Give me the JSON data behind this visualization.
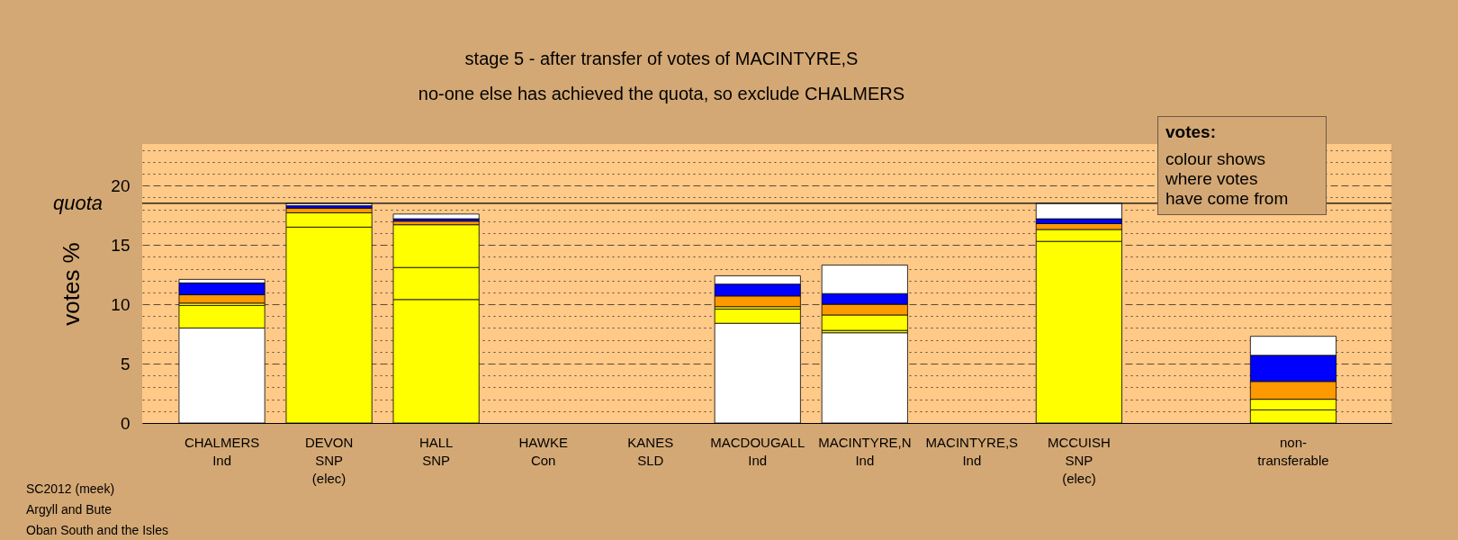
{
  "chart_data": {
    "type": "bar",
    "stacked": true,
    "title": "stage 5 - after transfer of votes of MACINTYRE,S",
    "subtitle": "no-one else has achieved the quota, so exclude CHALMERS",
    "ylabel": "votes %",
    "categories": [
      "CHALMERS\nInd",
      "DEVON\nSNP\n(elec)",
      "HALL\nSNP",
      "HAWKE\nCon",
      "KANES\nSLD",
      "MACDOUGALL\nInd",
      "MACINTYRE,N\nInd",
      "MACINTYRE,S\nInd",
      "MCCUISH\nSNP\n(elec)",
      null,
      "non-\ntransferable"
    ],
    "series": [
      {
        "colors": [
          "#ffffff",
          "#ffff00",
          "#ffff00",
          null,
          null,
          "#ffffff",
          "#ffffff",
          null,
          "#ffff00",
          null,
          "#ffff00"
        ],
        "values": [
          8.0,
          16.5,
          10.4,
          null,
          null,
          8.4,
          7.6,
          null,
          15.3,
          null,
          1.1
        ]
      },
      {
        "color": "#ffff00",
        "values": [
          1.9,
          1.2,
          2.7,
          null,
          null,
          1.2,
          0.2,
          null,
          1.0,
          null,
          0.9
        ]
      },
      {
        "color": "#ffff00",
        "values": [
          0.2,
          null,
          3.6,
          null,
          null,
          0.2,
          1.3,
          null,
          null,
          null,
          null
        ]
      },
      {
        "color": "#ff9900",
        "values": [
          0.7,
          0.4,
          0.3,
          null,
          null,
          0.9,
          0.9,
          null,
          0.5,
          null,
          1.5
        ]
      },
      {
        "color": "#0000ff",
        "values": [
          1.0,
          0.2,
          0.2,
          null,
          null,
          1.0,
          0.9,
          null,
          0.4,
          null,
          2.2
        ]
      },
      {
        "color": "#ffffff",
        "values": [
          0.3,
          0.2,
          0.4,
          null,
          null,
          0.7,
          2.4,
          null,
          1.3,
          null,
          1.6
        ]
      }
    ],
    "ylim": [
      0,
      23.5
    ],
    "yticks": [
      0,
      {
        "value": 1,
        "label": null
      },
      {
        "value": 2,
        "label": null
      },
      {
        "value": 3,
        "label": null
      },
      {
        "value": 4,
        "label": null
      },
      5,
      {
        "value": 6,
        "label": null
      },
      {
        "value": 7,
        "label": null
      },
      {
        "value": 8,
        "label": null
      },
      {
        "value": 9,
        "label": null
      },
      10,
      {
        "value": 11,
        "label": null
      },
      {
        "value": 12,
        "label": null
      },
      {
        "value": 13,
        "label": null
      },
      {
        "value": 14,
        "label": null
      },
      15,
      {
        "value": 16,
        "label": null
      },
      {
        "value": 17,
        "label": null
      },
      {
        "value": 18,
        "label": null
      },
      {
        "value": 19,
        "label": null
      },
      20,
      {
        "value": 21,
        "label": null
      },
      {
        "value": 22,
        "label": null
      },
      {
        "value": 23,
        "label": null
      }
    ],
    "grid": true,
    "ref_lines": [
      {
        "axis": "y",
        "value": 18.5,
        "label": "quota"
      }
    ],
    "annotations": [
      "votes:",
      "colour shows\nwhere votes\nhave come from",
      "SC2012 (meek)",
      "Argyll and Bute",
      "Oban South and the Isles"
    ]
  }
}
